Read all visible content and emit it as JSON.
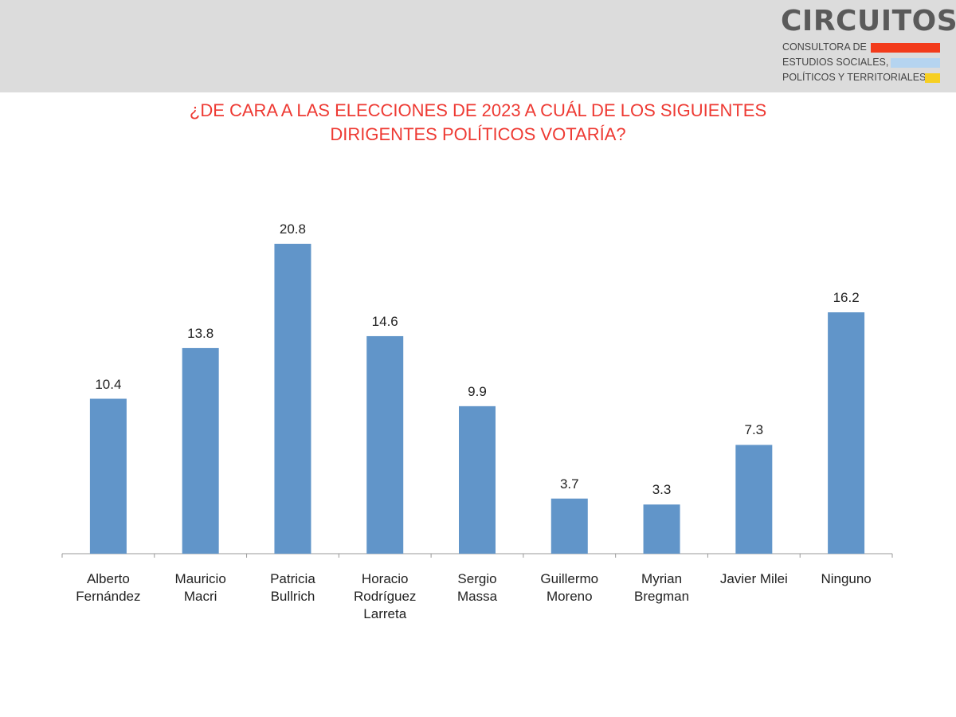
{
  "logo": {
    "name": "CIRCUITOS",
    "line1": "CONSULTORA DE",
    "line2": "ESTUDIOS SOCIALES,",
    "line3": "POLÍTICOS Y TERRITORIALES",
    "colors": [
      "#f23b1b",
      "#b5d4f0",
      "#f6cf22"
    ]
  },
  "colors": {
    "bar": "#6195c9",
    "title": "#ee3a33",
    "axis": "#999999"
  },
  "chart_data": {
    "type": "bar",
    "title_line1": "¿DE CARA A LAS ELECCIONES DE 2023 A CUÁL DE LOS SIGUIENTES",
    "title_line2": "DIRIGENTES POLÍTICOS VOTARÍA?",
    "categories": [
      "Alberto\nFernández",
      "Mauricio\nMacri",
      "Patricia\nBullrich",
      "Horacio\nRodríguez\nLarreta",
      "Sergio\nMassa",
      "Guillermo\nMoreno",
      "Myrian\nBregman",
      "Javier Milei",
      "Ninguno"
    ],
    "values": [
      10.4,
      13.8,
      20.8,
      14.6,
      9.9,
      3.7,
      3.3,
      7.3,
      16.2
    ],
    "value_labels": [
      "10.4",
      "13.8",
      "20.8",
      "14.6",
      "9.9",
      "3.7",
      "3.3",
      "7.3",
      "16.2"
    ],
    "ylim": [
      0,
      20.8
    ],
    "grid": false,
    "legend": "none"
  }
}
